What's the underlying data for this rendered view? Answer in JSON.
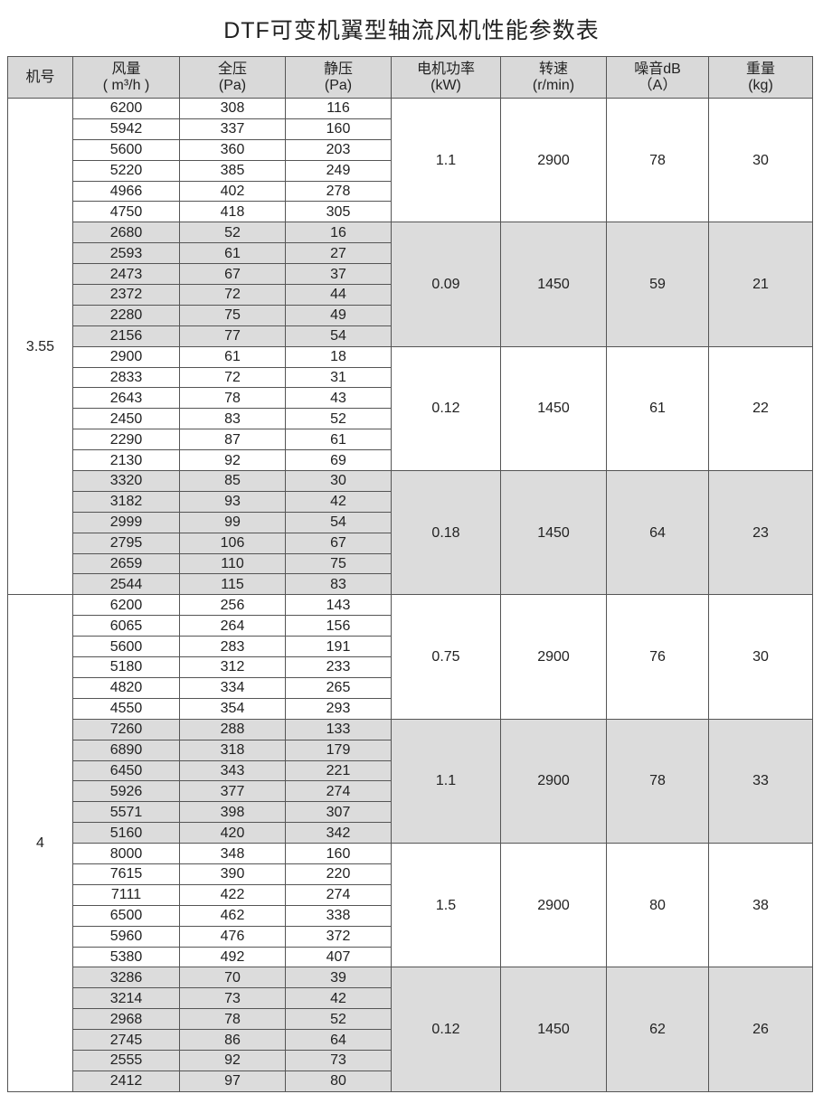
{
  "title": "DTF可变机翼型轴流风机性能参数表",
  "header": [
    {
      "l1": "机号",
      "l2": ""
    },
    {
      "l1": "风量",
      "l2": "( m³/h )"
    },
    {
      "l1": "全压",
      "l2": "(Pa)"
    },
    {
      "l1": "静压",
      "l2": "(Pa)"
    },
    {
      "l1": "电机功率",
      "l2": "(kW)"
    },
    {
      "l1": "转速",
      "l2": "(r/min)"
    },
    {
      "l1": "噪音dB",
      "l2": "（A）"
    },
    {
      "l1": "重量",
      "l2": "(kg)"
    }
  ],
  "models": [
    {
      "model": "3.55",
      "groups": [
        {
          "power": "1.1",
          "speed": "2900",
          "noise": "78",
          "weight": "30",
          "rows": [
            [
              "6200",
              "308",
              "116"
            ],
            [
              "5942",
              "337",
              "160"
            ],
            [
              "5600",
              "360",
              "203"
            ],
            [
              "5220",
              "385",
              "249"
            ],
            [
              "4966",
              "402",
              "278"
            ],
            [
              "4750",
              "418",
              "305"
            ]
          ]
        },
        {
          "power": "0.09",
          "speed": "1450",
          "noise": "59",
          "weight": "21",
          "rows": [
            [
              "2680",
              "52",
              "16"
            ],
            [
              "2593",
              "61",
              "27"
            ],
            [
              "2473",
              "67",
              "37"
            ],
            [
              "2372",
              "72",
              "44"
            ],
            [
              "2280",
              "75",
              "49"
            ],
            [
              "2156",
              "77",
              "54"
            ]
          ]
        },
        {
          "power": "0.12",
          "speed": "1450",
          "noise": "61",
          "weight": "22",
          "rows": [
            [
              "2900",
              "61",
              "18"
            ],
            [
              "2833",
              "72",
              "31"
            ],
            [
              "2643",
              "78",
              "43"
            ],
            [
              "2450",
              "83",
              "52"
            ],
            [
              "2290",
              "87",
              "61"
            ],
            [
              "2130",
              "92",
              "69"
            ]
          ]
        },
        {
          "power": "0.18",
          "speed": "1450",
          "noise": "64",
          "weight": "23",
          "rows": [
            [
              "3320",
              "85",
              "30"
            ],
            [
              "3182",
              "93",
              "42"
            ],
            [
              "2999",
              "99",
              "54"
            ],
            [
              "2795",
              "106",
              "67"
            ],
            [
              "2659",
              "110",
              "75"
            ],
            [
              "2544",
              "115",
              "83"
            ]
          ]
        }
      ]
    },
    {
      "model": "4",
      "groups": [
        {
          "power": "0.75",
          "speed": "2900",
          "noise": "76",
          "weight": "30",
          "rows": [
            [
              "6200",
              "256",
              "143"
            ],
            [
              "6065",
              "264",
              "156"
            ],
            [
              "5600",
              "283",
              "191"
            ],
            [
              "5180",
              "312",
              "233"
            ],
            [
              "4820",
              "334",
              "265"
            ],
            [
              "4550",
              "354",
              "293"
            ]
          ]
        },
        {
          "power": "1.1",
          "speed": "2900",
          "noise": "78",
          "weight": "33",
          "rows": [
            [
              "7260",
              "288",
              "133"
            ],
            [
              "6890",
              "318",
              "179"
            ],
            [
              "6450",
              "343",
              "221"
            ],
            [
              "5926",
              "377",
              "274"
            ],
            [
              "5571",
              "398",
              "307"
            ],
            [
              "5160",
              "420",
              "342"
            ]
          ]
        },
        {
          "power": "1.5",
          "speed": "2900",
          "noise": "80",
          "weight": "38",
          "rows": [
            [
              "8000",
              "348",
              "160"
            ],
            [
              "7615",
              "390",
              "220"
            ],
            [
              "7111",
              "422",
              "274"
            ],
            [
              "6500",
              "462",
              "338"
            ],
            [
              "5960",
              "476",
              "372"
            ],
            [
              "5380",
              "492",
              "407"
            ]
          ]
        },
        {
          "power": "0.12",
          "speed": "1450",
          "noise": "62",
          "weight": "26",
          "rows": [
            [
              "3286",
              "70",
              "39"
            ],
            [
              "3214",
              "73",
              "42"
            ],
            [
              "2968",
              "78",
              "52"
            ],
            [
              "2745",
              "86",
              "64"
            ],
            [
              "2555",
              "92",
              "73"
            ],
            [
              "2412",
              "97",
              "80"
            ]
          ]
        }
      ]
    }
  ]
}
